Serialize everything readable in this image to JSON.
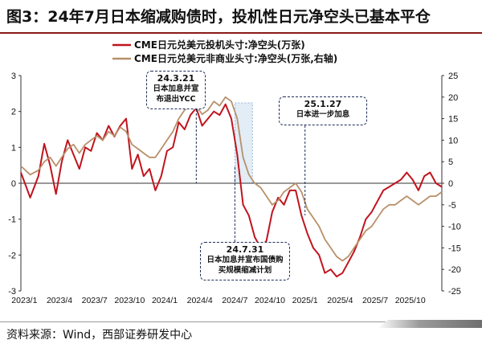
{
  "title": "图3：24年7月日本缩减购债时，投机性日元净空头已基本平仓",
  "footer": "资料来源：Wind，西部证券研发中心",
  "colors": {
    "speculative": "#c0141e",
    "noncommercial": "#b8906a",
    "accent": "#8b1a1a",
    "callout_border": "#1f2f5a"
  },
  "chart_data": {
    "type": "line",
    "title": "",
    "x_ticks": [
      "2023/1",
      "2023/4",
      "2023/7",
      "2023/10",
      "2024/1",
      "2024/4",
      "2024/7",
      "2024/10",
      "2025/1",
      "2025/4",
      "2025/7",
      "2025/10"
    ],
    "x_range": [
      0,
      36
    ],
    "left_axis": {
      "range": [
        -3,
        3
      ],
      "ticks": [
        3,
        2,
        1,
        0,
        -1,
        -2,
        -3
      ]
    },
    "right_axis": {
      "range": [
        -25,
        25
      ],
      "ticks": [
        25,
        20,
        15,
        10,
        5,
        0,
        -5,
        -10,
        -15,
        -20,
        -25
      ]
    },
    "series": [
      {
        "name": "CME日元兑美元投机头寸:净空头(万张)",
        "axis": "left",
        "x": [
          0,
          0.8,
          1.5,
          2,
          2.5,
          3,
          3.5,
          4,
          4.5,
          5,
          5.5,
          6,
          6.5,
          7,
          7.5,
          8,
          8.5,
          9,
          9.5,
          10,
          10.5,
          11,
          11.5,
          12,
          12.5,
          13,
          13.5,
          14,
          14.5,
          15,
          15.5,
          16,
          16.5,
          17,
          17.5,
          18,
          18.5,
          19,
          19.5,
          20,
          20.5,
          21,
          21.5,
          22,
          22.5,
          23,
          23.5,
          24,
          24.5,
          25,
          25.5,
          26,
          26.5,
          27,
          27.5,
          28,
          28.5,
          29,
          29.5,
          30,
          30.5,
          31,
          31.5,
          32,
          32.5,
          33,
          33.5,
          34,
          34.5,
          35,
          35.5,
          36
        ],
        "values": [
          0.3,
          -0.4,
          0.2,
          1.1,
          0.5,
          -0.3,
          0.6,
          1.2,
          0.8,
          0.4,
          1.0,
          0.9,
          1.4,
          1.2,
          1.6,
          1.3,
          1.6,
          1.8,
          0.4,
          0.8,
          0.2,
          0.4,
          -0.2,
          0.2,
          0.9,
          1.0,
          1.7,
          1.5,
          1.9,
          2.1,
          1.6,
          1.8,
          2.0,
          1.9,
          2.2,
          1.8,
          0.8,
          -0.6,
          -0.9,
          -1.5,
          -1.8,
          -1.6,
          -0.8,
          -0.4,
          -0.6,
          -0.2,
          -0.2,
          -0.9,
          -1.4,
          -1.8,
          -2.0,
          -2.5,
          -2.4,
          -2.6,
          -2.5,
          -2.2,
          -1.9,
          -1.5,
          -1.0,
          -0.8,
          -0.5,
          -0.2,
          -0.1,
          0.0,
          0.1,
          0.3,
          0.1,
          -0.2,
          0.2,
          0.3,
          0.0,
          -0.1
        ]
      },
      {
        "name": "CME日元兑美元非商业头寸:净空头(万张,右轴)",
        "axis": "right",
        "x": [
          0,
          0.8,
          1.5,
          2,
          2.5,
          3,
          3.5,
          4,
          4.5,
          5,
          5.5,
          6,
          6.5,
          7,
          7.5,
          8,
          8.5,
          9,
          9.5,
          10,
          10.5,
          11,
          11.5,
          12,
          12.5,
          13,
          13.5,
          14,
          14.5,
          15,
          15.5,
          16,
          16.5,
          17,
          17.5,
          18,
          18.5,
          19,
          19.5,
          20,
          20.5,
          21,
          21.5,
          22,
          22.5,
          23,
          23.5,
          24,
          24.5,
          25,
          25.5,
          26,
          26.5,
          27,
          27.5,
          28,
          28.5,
          29,
          29.5,
          30,
          30.5,
          31,
          31.5,
          32,
          32.5,
          33,
          33.5,
          34,
          34.5,
          35,
          35.5,
          36
        ],
        "values": [
          4,
          2,
          3,
          5,
          6,
          4,
          6,
          8,
          9,
          7,
          9,
          10,
          11,
          10,
          12,
          11,
          13,
          12,
          9,
          8,
          7,
          6,
          6,
          8,
          10,
          12,
          15,
          17,
          18,
          18,
          16,
          17,
          19,
          18,
          20,
          19,
          15,
          6,
          2,
          0,
          -1,
          -3,
          -5,
          -4,
          -2,
          -1,
          0,
          -2,
          -6,
          -8,
          -10,
          -13,
          -15,
          -17,
          -18,
          -17,
          -15,
          -13,
          -11,
          -10,
          -8,
          -6,
          -5,
          -5,
          -4,
          -3,
          -4,
          -5,
          -4,
          -3,
          -3,
          -2
        ]
      }
    ],
    "annotations": [
      {
        "date": "24.3.21",
        "text": "日本加息并宣布退出YCC",
        "x": 15.0
      },
      {
        "date": "24.7.31",
        "text": "日本加息并宣布国债购买规模缩减计划",
        "x": 18.3
      },
      {
        "date": "25.1.27",
        "text": "日本进一步加息",
        "x": 24.3
      }
    ],
    "shaded_period": [
      18.3,
      19.8
    ]
  }
}
